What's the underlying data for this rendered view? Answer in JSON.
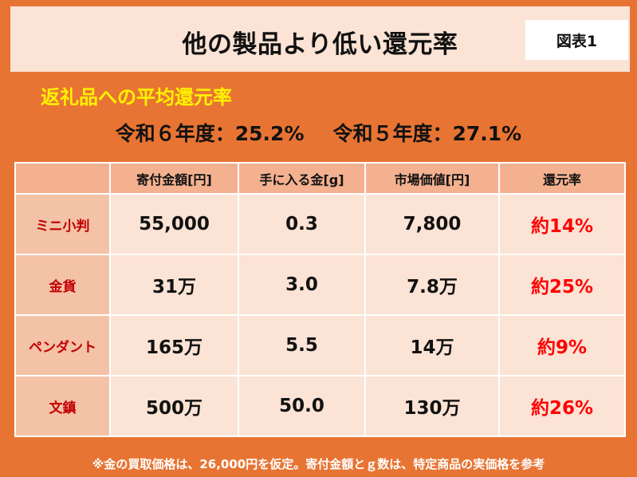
{
  "header": {
    "title": "他の製品より低い還元率",
    "figure_label": "図表1"
  },
  "subtitle": "返礼品への平均還元率",
  "rates": {
    "reiwa6": "令和６年度：25.2%",
    "reiwa5": "令和５年度：27.1%"
  },
  "table": {
    "headers": [
      "",
      "寄付金額[円]",
      "手に入る金[g]",
      "市場価値[円]",
      "還元率"
    ],
    "rows": [
      {
        "name": "ミニ小判",
        "donation": "55,000",
        "gold": "0.3",
        "market": "7,800",
        "rate": "約14%"
      },
      {
        "name": "金貨",
        "donation": "31万",
        "gold": "3.0",
        "market": "7.8万",
        "rate": "約25%"
      },
      {
        "name": "ペンダント",
        "donation": "165万",
        "gold": "5.5",
        "market": "14万",
        "rate": "約9%"
      },
      {
        "name": "文鎮",
        "donation": "500万",
        "gold": "50.0",
        "market": "130万",
        "rate": "約26%"
      }
    ]
  },
  "footnote": "※金の買取価格は、26,000円を仮定。寄付金額とｇ数は、特定商品の実価格を参考",
  "colors": {
    "background": "#e87433",
    "band": "#fbe3d5",
    "header_cell": "#f4b190",
    "row_head_cell": "#f4c2a6",
    "subtitle": "#fff200",
    "rate_text": "#ff0000",
    "row_head_text": "#c00000"
  }
}
